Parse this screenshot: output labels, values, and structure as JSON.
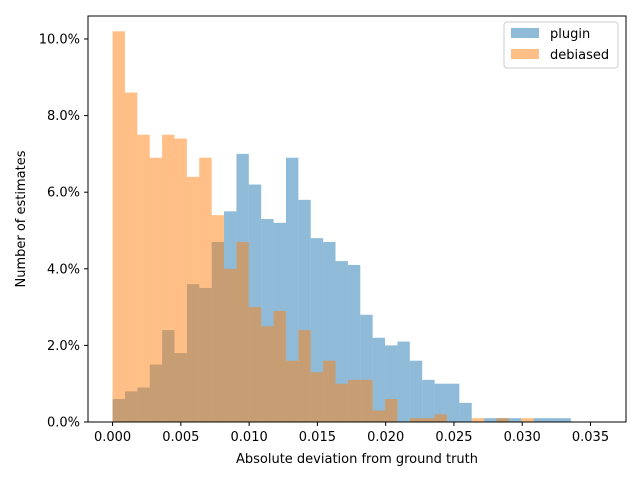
{
  "chart_data": {
    "type": "bar",
    "xlabel": "Absolute deviation from ground truth",
    "ylabel": "Number of estimates",
    "xlim": [
      -0.0018,
      0.0376
    ],
    "ylim": [
      0.0,
      10.6
    ],
    "xticks": [
      0.0,
      0.005,
      0.01,
      0.015,
      0.02,
      0.025,
      0.03,
      0.035
    ],
    "xtick_labels": [
      "0.000",
      "0.005",
      "0.010",
      "0.015",
      "0.020",
      "0.025",
      "0.030",
      "0.035"
    ],
    "yticks": [
      0,
      2,
      4,
      6,
      8,
      10
    ],
    "ytick_labels": [
      "0.0%",
      "2.0%",
      "4.0%",
      "6.0%",
      "8.0%",
      "10.0%"
    ],
    "legend_position": "top-right",
    "series": [
      {
        "name": "plugin",
        "color": "#1f77b4",
        "alpha": 0.5,
        "bin_start": 0.0,
        "bin_width": 0.000907,
        "values": [
          0.6,
          0.8,
          0.9,
          1.5,
          2.4,
          1.8,
          3.6,
          3.5,
          4.7,
          5.5,
          7.0,
          6.2,
          5.3,
          5.2,
          6.9,
          5.8,
          4.8,
          4.7,
          4.2,
          4.1,
          2.8,
          2.2,
          2.0,
          2.1,
          1.6,
          1.1,
          1.0,
          1.0,
          0.5,
          0.0,
          0.1,
          0.1,
          0.1,
          0.0,
          0.1,
          0.1,
          0.1
        ]
      },
      {
        "name": "debiased",
        "color": "#ff7f0e",
        "alpha": 0.5,
        "bin_start": 0.0,
        "bin_width": 0.000907,
        "values": [
          10.2,
          8.6,
          7.5,
          6.9,
          7.5,
          7.4,
          6.4,
          6.9,
          5.4,
          4.0,
          4.7,
          3.0,
          2.5,
          2.9,
          1.6,
          2.4,
          1.3,
          1.6,
          1.0,
          1.1,
          1.1,
          0.3,
          0.6,
          0.0,
          0.1,
          0.1,
          0.2,
          0.0,
          0.0,
          0.1,
          0.0,
          0.1,
          0.0,
          0.1,
          0.0,
          0.0,
          0.0
        ]
      }
    ]
  }
}
